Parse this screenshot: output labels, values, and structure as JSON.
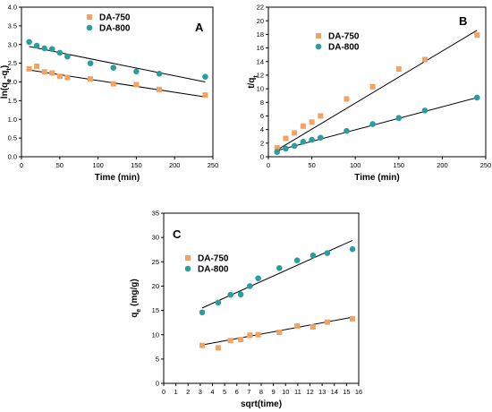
{
  "colors": {
    "DA-750": "#f4a261",
    "DA-800": "#2a9d9f"
  },
  "chart_data": [
    {
      "panel": "A",
      "type": "scatter",
      "xlabel": "Time (min)",
      "ylabel_parts": [
        "ln(q",
        "e",
        "-q",
        "t",
        ")"
      ],
      "xlim": [
        0,
        250
      ],
      "ylim": [
        0.0,
        4.0
      ],
      "xticks": [
        0,
        50,
        100,
        150,
        200,
        250
      ],
      "yticks": [
        0.0,
        0.5,
        1.0,
        1.5,
        2.0,
        2.5,
        3.0,
        3.5,
        4.0
      ],
      "ytick_labels": [
        "0.0",
        "0.5",
        "1.0",
        "1.5",
        "2.0",
        "2.5",
        "3.0",
        "3.5",
        "4.0"
      ],
      "legend_position": "top-left",
      "series": [
        {
          "name": "DA-750",
          "marker": "square",
          "x": [
            10,
            20,
            30,
            40,
            50,
            60,
            90,
            120,
            150,
            180,
            240
          ],
          "y": [
            2.35,
            2.42,
            2.27,
            2.24,
            2.15,
            2.12,
            2.08,
            1.95,
            1.93,
            1.8,
            1.65
          ],
          "fit": {
            "x": [
              10,
              240
            ],
            "y": [
              2.32,
              1.6
            ]
          }
        },
        {
          "name": "DA-800",
          "marker": "circle",
          "x": [
            10,
            20,
            30,
            40,
            50,
            60,
            90,
            120,
            150,
            180,
            240
          ],
          "y": [
            3.07,
            2.97,
            2.9,
            2.88,
            2.78,
            2.68,
            2.5,
            2.38,
            2.28,
            2.22,
            2.14
          ],
          "fit": {
            "x": [
              10,
              240
            ],
            "y": [
              2.95,
              2.0
            ]
          }
        }
      ]
    },
    {
      "panel": "B",
      "type": "scatter",
      "xlabel": "Time (min)",
      "ylabel_parts": [
        "t/q",
        "t"
      ],
      "xlim": [
        0,
        250
      ],
      "ylim": [
        0,
        22
      ],
      "xticks": [
        0,
        50,
        100,
        150,
        200,
        250
      ],
      "yticks": [
        0,
        2,
        4,
        6,
        8,
        10,
        12,
        14,
        16,
        18,
        20,
        22
      ],
      "ytick_labels": [
        "0",
        "2",
        "4",
        "6",
        "8",
        "10",
        "12",
        "14",
        "16",
        "18",
        "20",
        "22"
      ],
      "legend_position": "top-left",
      "series": [
        {
          "name": "DA-750",
          "marker": "square",
          "x": [
            10,
            20,
            30,
            40,
            50,
            60,
            90,
            120,
            150,
            180,
            240
          ],
          "y": [
            1.3,
            2.7,
            3.5,
            4.5,
            5.1,
            6.0,
            8.5,
            10.3,
            12.9,
            14.3,
            17.9
          ],
          "fit": {
            "x": [
              10,
              240
            ],
            "y": [
              1.0,
              18.6
            ]
          }
        },
        {
          "name": "DA-800",
          "marker": "circle",
          "x": [
            10,
            20,
            30,
            40,
            50,
            60,
            90,
            120,
            150,
            180,
            240
          ],
          "y": [
            0.7,
            1.2,
            1.6,
            2.2,
            2.5,
            2.8,
            3.8,
            4.8,
            5.7,
            6.8,
            8.7
          ],
          "fit": {
            "x": [
              10,
              240
            ],
            "y": [
              0.9,
              8.7
            ]
          }
        }
      ]
    },
    {
      "panel": "C",
      "type": "scatter",
      "xlabel": "sqrt(time)",
      "ylabel_parts": [
        "q",
        "e",
        " (mg/g)"
      ],
      "xlim": [
        0,
        16
      ],
      "ylim": [
        0,
        35
      ],
      "xticks": [
        0,
        1,
        2,
        3,
        4,
        5,
        6,
        7,
        8,
        9,
        10,
        11,
        12,
        13,
        14,
        15,
        16
      ],
      "yticks": [
        0,
        5,
        10,
        15,
        20,
        25,
        30,
        35
      ],
      "ytick_labels": [
        "0",
        "5",
        "10",
        "15",
        "20",
        "25",
        "30",
        "35"
      ],
      "legend_position": "top-left",
      "series": [
        {
          "name": "DA-750",
          "marker": "square",
          "x": [
            3.16,
            4.47,
            5.48,
            6.32,
            7.07,
            7.75,
            9.49,
            10.95,
            12.25,
            13.42,
            15.49
          ],
          "y": [
            7.8,
            7.3,
            8.8,
            9.0,
            9.9,
            10.0,
            10.5,
            11.8,
            11.6,
            12.6,
            13.3
          ],
          "fit": {
            "x": [
              3.16,
              15.49
            ],
            "y": [
              7.9,
              13.6
            ]
          }
        },
        {
          "name": "DA-800",
          "marker": "circle",
          "x": [
            3.16,
            4.47,
            5.48,
            6.32,
            7.07,
            7.75,
            9.49,
            10.95,
            12.25,
            13.42,
            15.49
          ],
          "y": [
            14.6,
            16.6,
            18.2,
            18.3,
            20.0,
            21.6,
            23.7,
            25.3,
            26.3,
            26.8,
            27.6
          ],
          "fit": {
            "x": [
              3.16,
              15.49
            ],
            "y": [
              15.5,
              29.4
            ]
          }
        }
      ]
    }
  ]
}
